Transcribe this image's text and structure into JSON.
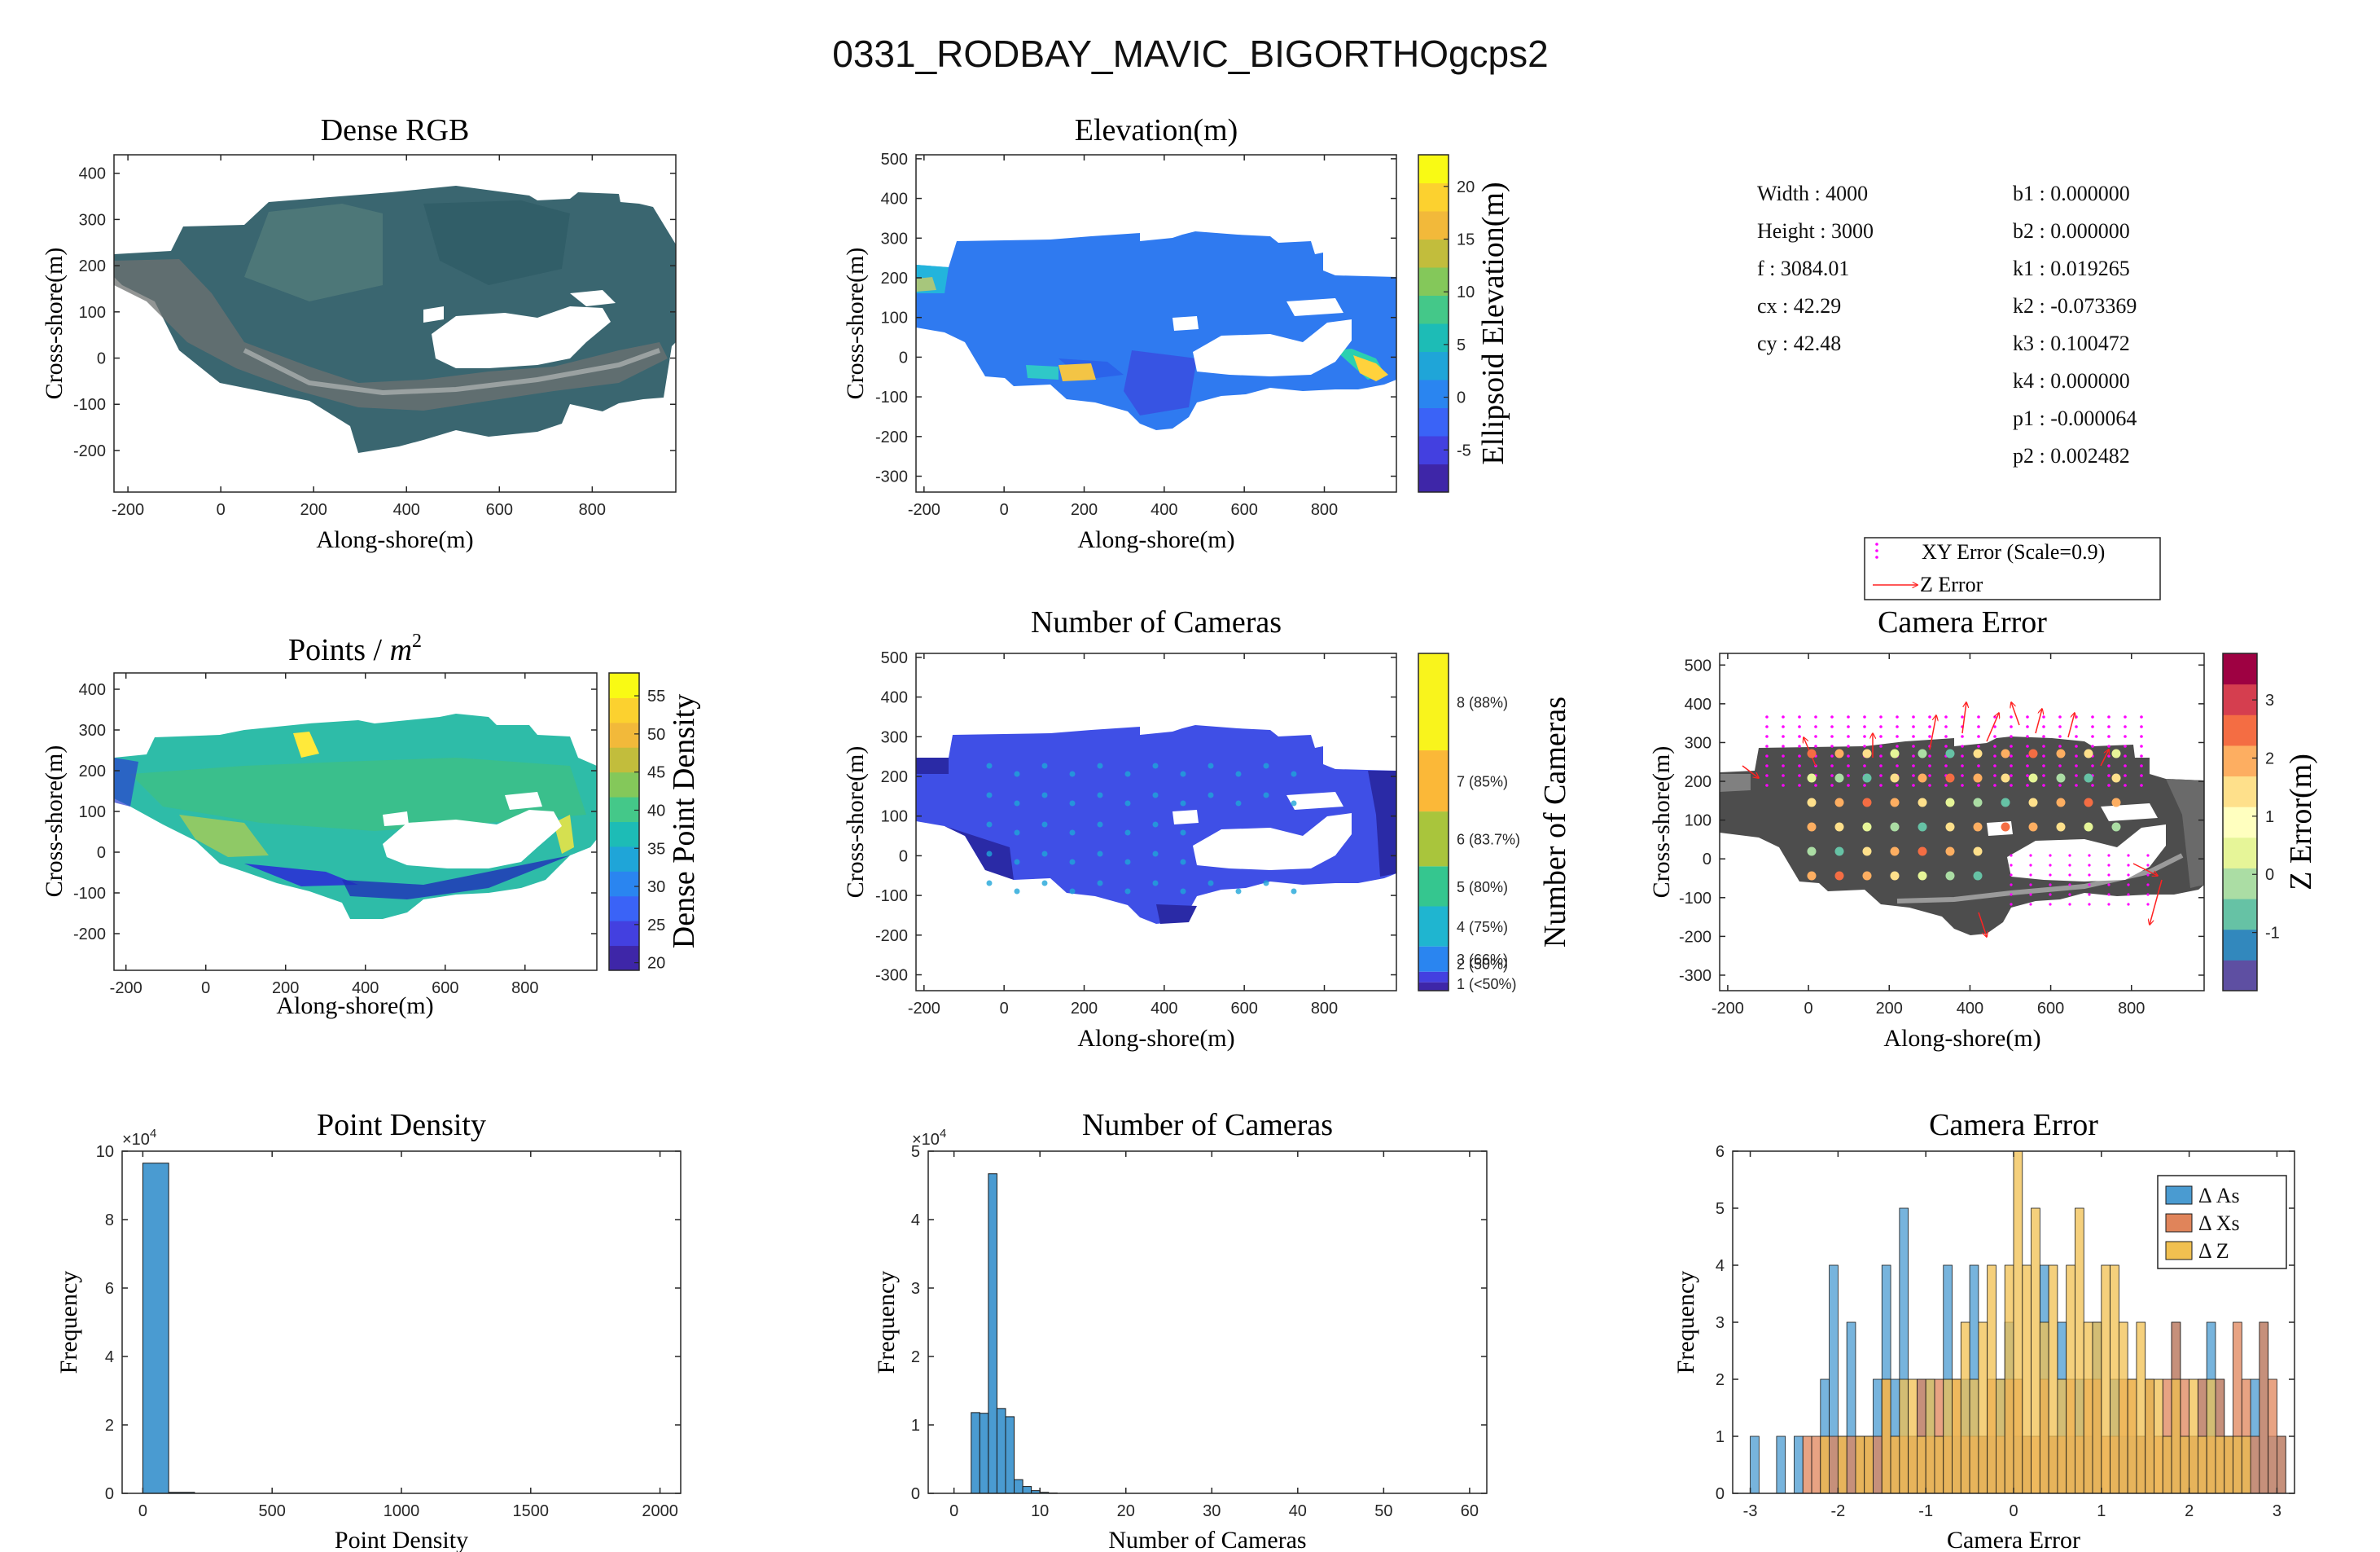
{
  "figure_title": "0331_RODBAY_MAVIC_BIGORTHOgcps2",
  "colors": {
    "hist_blue": "#4a9bd1",
    "hist_orange": "#e0845a",
    "hist_yellow": "#f1c050",
    "map_blue": "#3a5be6",
    "xy_error_magenta": "#ff00ff",
    "z_error_red": "#ff2222"
  },
  "camera_params": {
    "left": [
      {
        "label": "Width",
        "value": "4000"
      },
      {
        "label": "Height",
        "value": "3000"
      },
      {
        "label": "f",
        "value": "3084.01"
      },
      {
        "label": "cx",
        "value": "42.29"
      },
      {
        "label": "cy",
        "value": "42.48"
      }
    ],
    "right": [
      {
        "label": "b1",
        "value": "0.000000"
      },
      {
        "label": "b2",
        "value": "0.000000"
      },
      {
        "label": "k1",
        "value": "0.019265"
      },
      {
        "label": "k2",
        "value": "-0.073369"
      },
      {
        "label": "k3",
        "value": "0.100472"
      },
      {
        "label": "k4",
        "value": "0.000000"
      },
      {
        "label": "p1",
        "value": "-0.000064"
      },
      {
        "label": "p2",
        "value": "0.002482"
      }
    ]
  },
  "chart_data": [
    {
      "id": "dense_rgb",
      "type": "heatmap",
      "title": "Dense RGB",
      "xlabel": "Along-shore(m)",
      "ylabel": "Cross-shore(m)",
      "xlim": [
        -230,
        980
      ],
      "ylim": [
        -290,
        440
      ],
      "xticks": [
        -200,
        0,
        200,
        400,
        600,
        800
      ],
      "yticks": [
        -200,
        -100,
        0,
        100,
        200,
        300,
        400
      ],
      "colorbar": null
    },
    {
      "id": "elevation",
      "type": "heatmap",
      "title": "Elevation(m)",
      "xlabel": "Along-shore(m)",
      "ylabel": "Cross-shore(m)",
      "xlim": [
        -220,
        980
      ],
      "ylim": [
        -340,
        510
      ],
      "xticks": [
        -200,
        0,
        200,
        400,
        600,
        800
      ],
      "yticks": [
        -300,
        -200,
        -100,
        0,
        100,
        200,
        300,
        400,
        500
      ],
      "colorbar": {
        "label": "Ellipsoid Elevation(m)",
        "range": [
          -9,
          23
        ],
        "ticks": [
          "-5",
          "0",
          "5",
          "10",
          "15",
          "20"
        ],
        "tick_values": [
          -5,
          0,
          5,
          10,
          15,
          20
        ]
      }
    },
    {
      "id": "points_per_m2",
      "type": "heatmap",
      "title": "Points / m²",
      "xlabel": "Along-shore(m)",
      "ylabel": "Cross-shore(m)",
      "xlim": [
        -230,
        980
      ],
      "ylim": [
        -290,
        440
      ],
      "xticks": [
        -200,
        0,
        200,
        400,
        600,
        800
      ],
      "yticks": [
        -200,
        -100,
        0,
        100,
        200,
        300,
        400
      ],
      "colorbar": {
        "label": "Dense Point Density",
        "range": [
          19,
          58
        ],
        "ticks": [
          "20",
          "25",
          "30",
          "35",
          "40",
          "45",
          "50",
          "55"
        ],
        "tick_values": [
          20,
          25,
          30,
          35,
          40,
          45,
          50,
          55
        ]
      }
    },
    {
      "id": "number_of_cameras_map",
      "type": "heatmap",
      "title": "Number of Cameras",
      "xlabel": "Along-shore(m)",
      "ylabel": "Cross-shore(m)",
      "xlim": [
        -220,
        980
      ],
      "ylim": [
        -340,
        510
      ],
      "xticks": [
        -200,
        0,
        200,
        400,
        600,
        800
      ],
      "yticks": [
        -300,
        -200,
        -100,
        0,
        100,
        200,
        300,
        400,
        500
      ],
      "colorbar": {
        "label": "Number of Cameras",
        "ticks": [
          "1 (<50%)",
          "2 (50%)",
          "3 (66%)",
          "4 (75%)",
          "5 (80%)",
          "6 (83.7%)",
          "7 (85%)",
          "8 (88%)"
        ]
      }
    },
    {
      "id": "camera_error_map",
      "type": "scatter",
      "title": "Camera Error",
      "xlabel": "Along-shore(m)",
      "ylabel": "Cross-shore(m)",
      "xlim": [
        -220,
        980
      ],
      "ylim": [
        -340,
        530
      ],
      "xticks": [
        -200,
        0,
        200,
        400,
        600,
        800
      ],
      "yticks": [
        -300,
        -200,
        -100,
        0,
        100,
        200,
        300,
        400,
        500
      ],
      "legend": [
        "XY Error (Scale=0.9)",
        "Z Error"
      ],
      "legend_position": "top",
      "colorbar": {
        "label": "Z Error(m)",
        "range": [
          -2,
          3.8
        ],
        "ticks": [
          "-1",
          "0",
          "1",
          "2",
          "3"
        ],
        "tick_values": [
          -1,
          0,
          1,
          2,
          3
        ]
      }
    },
    {
      "id": "point_density_hist",
      "type": "bar",
      "title": "Point Density",
      "xlabel": "Point Density",
      "ylabel": "Frequency",
      "xlim": [
        -80,
        2080
      ],
      "ylim": [
        0,
        100000
      ],
      "xticks": [
        0,
        500,
        1000,
        1500,
        2000
      ],
      "yticks": [
        0,
        20000,
        40000,
        60000,
        80000,
        100000
      ],
      "ytick_labels": [
        "0",
        "2",
        "4",
        "6",
        "8",
        "10"
      ],
      "y_exponent": "×10",
      "y_exponent_power": "4",
      "bins": [
        {
          "x0": 0,
          "x1": 100,
          "value": 96500
        },
        {
          "x0": 100,
          "x1": 200,
          "value": 300
        }
      ]
    },
    {
      "id": "number_of_cameras_hist",
      "type": "bar",
      "title": "Number of Cameras",
      "xlabel": "Number of Cameras",
      "ylabel": "Frequency",
      "xlim": [
        -3,
        62
      ],
      "ylim": [
        0,
        50000
      ],
      "xticks": [
        0,
        10,
        20,
        30,
        40,
        50,
        60
      ],
      "yticks": [
        0,
        10000,
        20000,
        30000,
        40000,
        50000
      ],
      "ytick_labels": [
        "0",
        "1",
        "2",
        "3",
        "4",
        "5"
      ],
      "y_exponent": "×10",
      "y_exponent_power": "4",
      "bins": [
        {
          "x0": 2,
          "x1": 3,
          "value": 11800
        },
        {
          "x0": 3,
          "x1": 4,
          "value": 11700
        },
        {
          "x0": 4,
          "x1": 5,
          "value": 46700
        },
        {
          "x0": 5,
          "x1": 6,
          "value": 12400
        },
        {
          "x0": 6,
          "x1": 7,
          "value": 11200
        },
        {
          "x0": 7,
          "x1": 8,
          "value": 2000
        },
        {
          "x0": 8,
          "x1": 9,
          "value": 1000
        },
        {
          "x0": 9,
          "x1": 10,
          "value": 400
        },
        {
          "x0": 10,
          "x1": 11,
          "value": 150
        },
        {
          "x0": 11,
          "x1": 12,
          "value": 60
        }
      ]
    },
    {
      "id": "camera_error_hist",
      "type": "bar",
      "title": "Camera Error",
      "xlabel": "Camera Error",
      "ylabel": "Frequency",
      "xlim": [
        -3.2,
        3.2
      ],
      "ylim": [
        0,
        6
      ],
      "xticks": [
        -3,
        -2,
        -1,
        0,
        1,
        2,
        3
      ],
      "yticks": [
        0,
        1,
        2,
        3,
        4,
        5,
        6
      ],
      "ytick_labels": [
        "0",
        "1",
        "2",
        "3",
        "4",
        "5",
        "6"
      ],
      "legend_position": "top-right",
      "bin_start": -3.0,
      "bin_width": 0.1,
      "series": [
        {
          "name": "Δ As",
          "values": [
            1,
            0,
            0,
            1,
            0,
            1,
            0,
            0,
            2,
            4,
            1,
            3,
            1,
            1,
            2,
            4,
            2,
            5,
            1,
            2,
            2,
            1,
            4,
            1,
            2,
            4,
            1,
            1,
            2,
            3,
            1,
            1,
            0,
            4,
            1,
            3,
            1,
            2,
            1,
            3,
            0,
            2,
            1,
            1,
            1,
            2,
            0,
            1,
            3,
            1,
            1,
            2,
            3,
            2,
            1,
            1,
            1,
            2,
            3,
            1,
            1
          ]
        },
        {
          "name": "Δ Xs",
          "values": [
            0,
            0,
            0,
            0,
            0,
            0,
            1,
            1,
            1,
            1,
            1,
            1,
            1,
            1,
            1,
            2,
            1,
            1,
            1,
            2,
            1,
            2,
            1,
            2,
            1,
            1,
            1,
            2,
            1,
            2,
            2,
            1,
            1,
            2,
            1,
            1,
            2,
            1,
            2,
            2,
            1,
            1,
            2,
            2,
            1,
            2,
            1,
            2,
            3,
            2,
            1,
            2,
            1,
            2,
            1,
            3,
            2,
            1,
            3,
            2,
            1
          ]
        },
        {
          "name": "Δ Z",
          "values": [
            0,
            0,
            0,
            0,
            0,
            0,
            0,
            0,
            1,
            0,
            1,
            0,
            1,
            1,
            0,
            2,
            1,
            2,
            2,
            1,
            2,
            1,
            2,
            2,
            3,
            2,
            3,
            4,
            2,
            4,
            6,
            4,
            5,
            3,
            4,
            2,
            4,
            5,
            3,
            3,
            4,
            4,
            3,
            2,
            3,
            2,
            2,
            1,
            2,
            1,
            2,
            1,
            2,
            1,
            1,
            1,
            1,
            0,
            0,
            0,
            0
          ]
        }
      ]
    }
  ]
}
